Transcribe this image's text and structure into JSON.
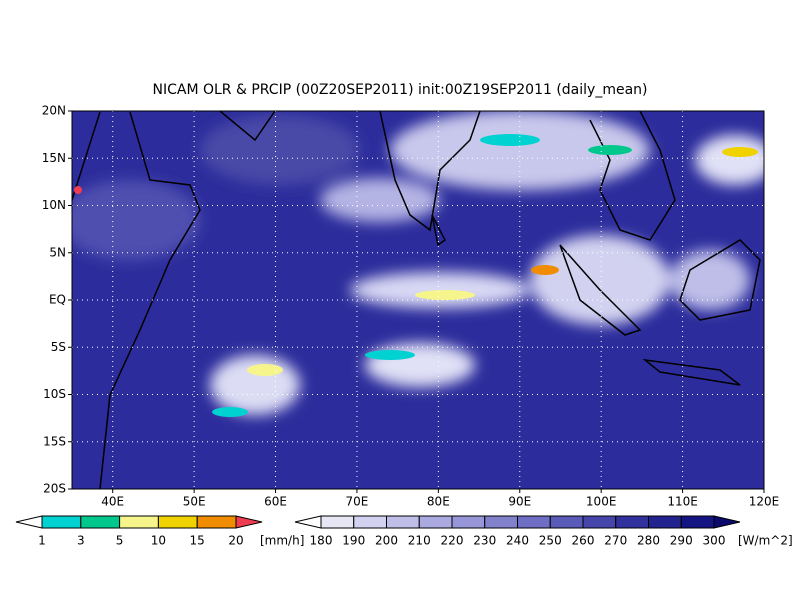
{
  "title": "NICAM OLR & PRCIP (00Z20SEP2011) init:00Z19SEP2011 (daily_mean)",
  "map": {
    "lonlim": [
      35,
      120
    ],
    "latlim": [
      -20,
      20
    ],
    "lonticks": [
      {
        "value": 40,
        "label": "40E"
      },
      {
        "value": 50,
        "label": "50E"
      },
      {
        "value": 60,
        "label": "60E"
      },
      {
        "value": 70,
        "label": "70E"
      },
      {
        "value": 80,
        "label": "80E"
      },
      {
        "value": 90,
        "label": "90E"
      },
      {
        "value": 100,
        "label": "100E"
      },
      {
        "value": 110,
        "label": "110E"
      },
      {
        "value": 120,
        "label": "120E"
      }
    ],
    "latticks": [
      {
        "value": 20,
        "label": "20N"
      },
      {
        "value": 15,
        "label": "15N"
      },
      {
        "value": 10,
        "label": "10N"
      },
      {
        "value": 5,
        "label": "5N"
      },
      {
        "value": 0,
        "label": "EQ"
      },
      {
        "value": -5,
        "label": "5S"
      },
      {
        "value": -10,
        "label": "10S"
      },
      {
        "value": -15,
        "label": "15S"
      },
      {
        "value": -20,
        "label": "20S"
      }
    ],
    "grid": true
  },
  "legends": {
    "precip": {
      "levels": [
        1,
        3,
        5,
        10,
        15,
        20
      ],
      "unit": "[mm/h]",
      "colors": [
        "#ffffff",
        "#00d2d2",
        "#00c88c",
        "#f5f58c",
        "#f0d200",
        "#f08c00",
        "#f03c50"
      ]
    },
    "olr": {
      "levels": [
        180,
        190,
        200,
        210,
        220,
        230,
        240,
        250,
        260,
        270,
        280,
        290,
        300
      ],
      "unit": "[W/m^2]",
      "colors": [
        "#ffffff",
        "#e6e6f5",
        "#d2d2f0",
        "#bebee8",
        "#aaaae0",
        "#9696d8",
        "#8282cc",
        "#6e6ec4",
        "#5a5ab9",
        "#4646aa",
        "#32329f",
        "#23238f",
        "#141482",
        "#0a0a6e"
      ]
    }
  }
}
